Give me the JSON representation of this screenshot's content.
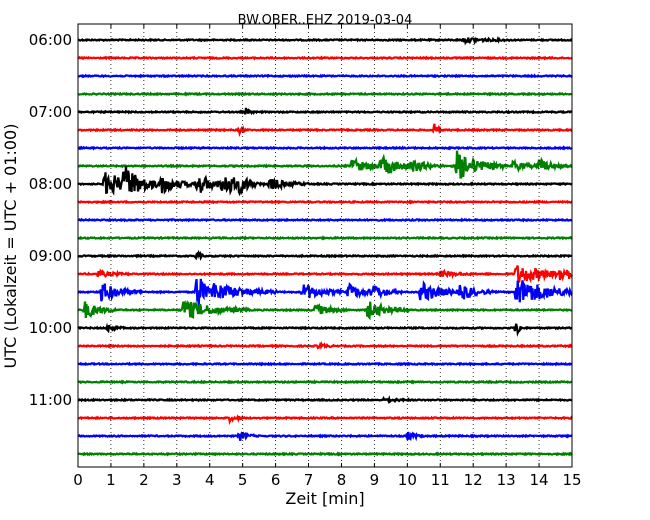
{
  "chart_data": {
    "type": "line",
    "title": "BW.OBER..EHZ 2019-03-04",
    "xlabel": "Zeit  [min]",
    "ylabel": "UTC (Lokalzeit = UTC + 01:00)",
    "xlim": [
      0,
      15
    ],
    "x_ticks": [
      "0",
      "1",
      "2",
      "3",
      "4",
      "5",
      "6",
      "7",
      "8",
      "9",
      "10",
      "11",
      "12",
      "13",
      "14",
      "15"
    ],
    "y_ticks": [
      "06:00",
      "07:00",
      "08:00",
      "09:00",
      "10:00",
      "11:00"
    ],
    "grid": "vertical-dotted",
    "trace_colors": [
      "#000000",
      "#ff0000",
      "#0000ff",
      "#008000"
    ],
    "trace_interval_minutes": 15,
    "traces": [
      {
        "start": "06:00",
        "events": [
          {
            "t": 11.7,
            "amp": 0.25,
            "dur": 0.6
          }
        ]
      },
      {
        "start": "06:15",
        "events": []
      },
      {
        "start": "06:30",
        "events": []
      },
      {
        "start": "06:45",
        "events": []
      },
      {
        "start": "07:00",
        "events": [
          {
            "t": 5.1,
            "amp": 0.35,
            "dur": 0.1
          }
        ]
      },
      {
        "start": "07:15",
        "events": [
          {
            "t": 4.9,
            "amp": 0.4,
            "dur": 0.1
          },
          {
            "t": 10.8,
            "amp": 0.7,
            "dur": 0.1
          }
        ]
      },
      {
        "start": "07:30",
        "events": []
      },
      {
        "start": "07:45",
        "events": [
          {
            "t": 8.3,
            "amp": 0.7,
            "dur": 0.5
          },
          {
            "t": 9.2,
            "amp": 0.9,
            "dur": 0.6
          },
          {
            "t": 10.1,
            "amp": 0.5,
            "dur": 0.4
          },
          {
            "t": 11.5,
            "amp": 1.5,
            "dur": 0.6
          },
          {
            "t": 13.2,
            "amp": 0.5,
            "dur": 0.4
          },
          {
            "t": 14.0,
            "amp": 0.6,
            "dur": 0.4
          }
        ]
      },
      {
        "start": "08:00",
        "events": [
          {
            "t": 0.8,
            "amp": 1.2,
            "dur": 0.8
          },
          {
            "t": 1.4,
            "amp": 1.4,
            "dur": 0.4
          },
          {
            "t": 2.5,
            "amp": 0.9,
            "dur": 0.5
          },
          {
            "t": 3.6,
            "amp": 1.0,
            "dur": 0.5
          },
          {
            "t": 4.4,
            "amp": 1.2,
            "dur": 0.4
          },
          {
            "t": 4.9,
            "amp": 0.6,
            "dur": 0.3
          },
          {
            "t": 5.8,
            "amp": 0.6,
            "dur": 0.5
          }
        ]
      },
      {
        "start": "08:15",
        "events": []
      },
      {
        "start": "08:30",
        "events": []
      },
      {
        "start": "08:45",
        "events": []
      },
      {
        "start": "09:00",
        "events": [
          {
            "t": 3.6,
            "amp": 0.5,
            "dur": 0.1
          }
        ]
      },
      {
        "start": "09:15",
        "events": [
          {
            "t": 0.6,
            "amp": 0.3,
            "dur": 0.4
          },
          {
            "t": 11.0,
            "amp": 0.3,
            "dur": 0.4
          },
          {
            "t": 13.3,
            "amp": 1.0,
            "dur": 0.8
          },
          {
            "t": 14.6,
            "amp": 0.6,
            "dur": 0.5
          }
        ]
      },
      {
        "start": "09:30",
        "events": [
          {
            "t": 0.7,
            "amp": 1.0,
            "dur": 0.5
          },
          {
            "t": 3.6,
            "amp": 2.5,
            "dur": 0.2
          },
          {
            "t": 4.1,
            "amp": 1.0,
            "dur": 0.8
          },
          {
            "t": 6.8,
            "amp": 0.9,
            "dur": 0.5
          },
          {
            "t": 8.2,
            "amp": 0.8,
            "dur": 0.4
          },
          {
            "t": 8.9,
            "amp": 0.7,
            "dur": 0.4
          },
          {
            "t": 10.4,
            "amp": 1.0,
            "dur": 0.6
          },
          {
            "t": 11.6,
            "amp": 0.8,
            "dur": 0.4
          },
          {
            "t": 13.3,
            "amp": 1.5,
            "dur": 0.9
          }
        ]
      },
      {
        "start": "09:45",
        "events": [
          {
            "t": 0.2,
            "amp": 0.9,
            "dur": 0.4
          },
          {
            "t": 3.2,
            "amp": 1.0,
            "dur": 0.8
          },
          {
            "t": 7.2,
            "amp": 0.6,
            "dur": 0.4
          },
          {
            "t": 8.8,
            "amp": 0.9,
            "dur": 0.5
          }
        ]
      },
      {
        "start": "10:00",
        "events": [
          {
            "t": 0.9,
            "amp": 0.4,
            "dur": 0.2
          },
          {
            "t": 13.3,
            "amp": 1.0,
            "dur": 0.1
          }
        ]
      },
      {
        "start": "10:15",
        "events": [
          {
            "t": 7.3,
            "amp": 0.25,
            "dur": 0.2
          }
        ]
      },
      {
        "start": "10:30",
        "events": []
      },
      {
        "start": "10:45",
        "events": []
      },
      {
        "start": "11:00",
        "events": [
          {
            "t": 9.3,
            "amp": 0.2,
            "dur": 0.3
          }
        ]
      },
      {
        "start": "11:15",
        "events": [
          {
            "t": 4.6,
            "amp": 0.3,
            "dur": 0.2
          }
        ]
      },
      {
        "start": "11:30",
        "events": [
          {
            "t": 4.9,
            "amp": 0.5,
            "dur": 0.2
          },
          {
            "t": 10.0,
            "amp": 0.45,
            "dur": 0.2
          }
        ]
      },
      {
        "start": "11:45",
        "events": []
      }
    ]
  }
}
